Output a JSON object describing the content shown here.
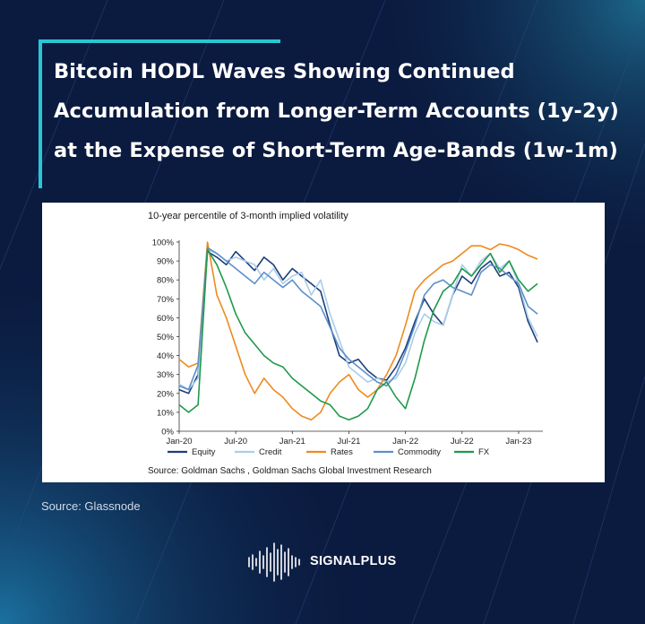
{
  "headline": {
    "line1": "Bitcoin HODL Waves Showing Continued",
    "line2": "Accumulation from Longer-Term Accounts (1y-2y)",
    "line3": "at the Expense of Short-Term Age-Bands (1w-1m)"
  },
  "chart_data": {
    "type": "line",
    "title": "10-year percentile of 3-month implied volatility",
    "source": "Source: Goldman Sachs , Goldman Sachs Global Investment Research",
    "ylim": [
      0,
      100
    ],
    "yticks": [
      "0%",
      "10%",
      "20%",
      "30%",
      "40%",
      "50%",
      "60%",
      "70%",
      "80%",
      "90%",
      "100%"
    ],
    "xticks": [
      "Jan-20",
      "Jul-20",
      "Jan-21",
      "Jul-21",
      "Jan-22",
      "Jul-22",
      "Jan-23"
    ],
    "grid": false,
    "legend_position": "bottom",
    "x": [
      0,
      1,
      2,
      3,
      4,
      5,
      6,
      7,
      8,
      9,
      10,
      11,
      12,
      13,
      14,
      15,
      16,
      17,
      18,
      19,
      20,
      21,
      22,
      23,
      24,
      25,
      26,
      27,
      28,
      29,
      30,
      31,
      32,
      33,
      34,
      35,
      36,
      37,
      38
    ],
    "series": [
      {
        "name": "Equity",
        "color": "#1b3f7a",
        "values": [
          22,
          20,
          30,
          95,
          92,
          88,
          95,
          90,
          85,
          92,
          88,
          80,
          86,
          82,
          78,
          74,
          56,
          40,
          36,
          38,
          32,
          28,
          27,
          34,
          44,
          58,
          70,
          62,
          56,
          72,
          82,
          78,
          86,
          90,
          82,
          84,
          76,
          58,
          47
        ]
      },
      {
        "name": "Credit",
        "color": "#a9cdea",
        "values": [
          25,
          22,
          28,
          96,
          94,
          90,
          92,
          90,
          88,
          80,
          86,
          78,
          82,
          84,
          72,
          80,
          62,
          48,
          34,
          30,
          26,
          28,
          26,
          28,
          36,
          52,
          62,
          58,
          56,
          72,
          88,
          82,
          90,
          94,
          86,
          90,
          78,
          60,
          50
        ]
      },
      {
        "name": "Rates",
        "color": "#ef8a1e",
        "values": [
          38,
          34,
          36,
          100,
          72,
          60,
          45,
          30,
          20,
          28,
          22,
          18,
          12,
          8,
          6,
          10,
          20,
          26,
          30,
          22,
          18,
          22,
          30,
          40,
          56,
          74,
          80,
          84,
          88,
          90,
          94,
          98,
          98,
          96,
          99,
          98,
          96,
          93,
          91
        ]
      },
      {
        "name": "Commodity",
        "color": "#5e8fc8",
        "values": [
          24,
          22,
          35,
          97,
          94,
          90,
          86,
          82,
          78,
          84,
          80,
          76,
          80,
          74,
          70,
          66,
          55,
          44,
          38,
          34,
          30,
          26,
          24,
          30,
          42,
          56,
          72,
          78,
          80,
          76,
          74,
          72,
          84,
          88,
          86,
          82,
          78,
          66,
          62
        ]
      },
      {
        "name": "FX",
        "color": "#1e9a4a",
        "values": [
          14,
          10,
          14,
          96,
          88,
          76,
          62,
          52,
          46,
          40,
          36,
          34,
          28,
          24,
          20,
          16,
          14,
          8,
          6,
          8,
          12,
          22,
          26,
          18,
          12,
          28,
          48,
          64,
          74,
          78,
          86,
          82,
          88,
          94,
          84,
          90,
          80,
          74,
          78
        ]
      }
    ]
  },
  "footer": {
    "source": "Source: Glassnode",
    "brand_name": "SIGNALPLUS"
  }
}
